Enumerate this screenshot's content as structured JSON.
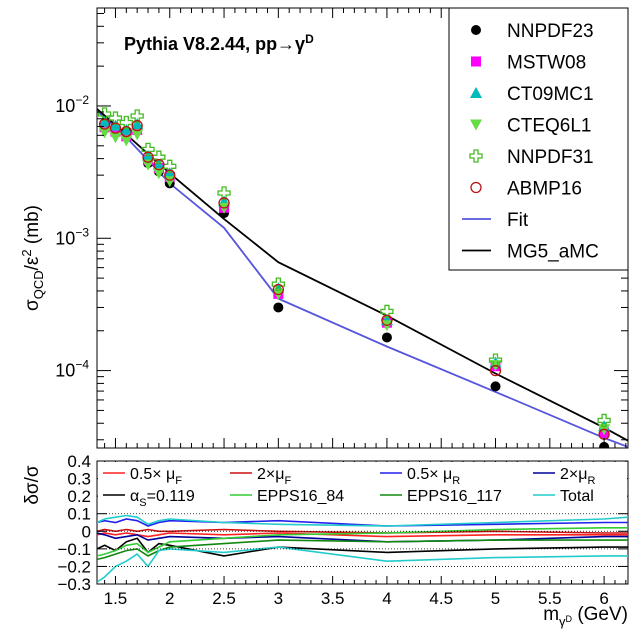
{
  "chart_data": [
    {
      "type": "scatter",
      "panel": "top",
      "title": "Pythia V8.2.44, pp→γD",
      "title_main": "Pythia V8.2.44, pp→γ",
      "title_sup": "D",
      "ylabel_parts": {
        "sigma": "σ",
        "sub": "QCD",
        "mid": "/ε",
        "sup": "2",
        "unit": " (mb)"
      },
      "yscale": "log",
      "xlim": [
        1.33,
        6.22
      ],
      "ylim": [
        2.6e-05,
        0.055
      ],
      "yticks": [
        {
          "v": 0.0001,
          "base": "10",
          "exp": "−4"
        },
        {
          "v": 0.001,
          "base": "10",
          "exp": "−3"
        },
        {
          "v": 0.01,
          "base": "10",
          "exp": "−2"
        }
      ],
      "legend_position": "top-right",
      "series": [
        {
          "name": "NNPDF23",
          "marker": "filled-circle",
          "color": "#000000",
          "x": [
            1.4,
            1.5,
            1.6,
            1.7,
            1.8,
            1.9,
            2.0,
            2.5,
            3.0,
            4.0,
            5.0,
            6.0
          ],
          "y": [
            0.0071,
            0.0066,
            0.0064,
            0.0068,
            0.0037,
            0.0032,
            0.0026,
            0.00155,
            0.0003,
            0.000178,
            7.6e-05,
            2.65e-05
          ]
        },
        {
          "name": "MSTW08",
          "marker": "filled-square",
          "color": "#ff00ff",
          "x": [
            1.4,
            1.5,
            1.6,
            1.7,
            1.8,
            1.9,
            2.0,
            2.5,
            3.0,
            4.0,
            5.0,
            6.0
          ],
          "y": [
            0.0069,
            0.0064,
            0.0059,
            0.0066,
            0.0039,
            0.0034,
            0.0029,
            0.0017,
            0.00038,
            0.00023,
            0.000108,
            3.4e-05
          ]
        },
        {
          "name": "CT09MC1",
          "marker": "triangle-up",
          "color": "#00bbbb",
          "x": [
            1.4,
            1.5,
            1.6,
            1.7,
            1.8,
            1.9,
            2.0,
            2.5,
            3.0,
            4.0,
            5.0,
            6.0
          ],
          "y": [
            0.0076,
            0.0071,
            0.0066,
            0.0073,
            0.0042,
            0.0036,
            0.0031,
            0.0019,
            0.00042,
            0.00024,
            0.000115,
            3.8e-05
          ]
        },
        {
          "name": "CTEQ6L1",
          "marker": "triangle-down",
          "color": "#66dd44",
          "x": [
            1.4,
            1.5,
            1.6,
            1.7,
            1.8,
            1.9,
            2.0,
            2.5,
            3.0,
            4.0,
            5.0,
            6.0
          ],
          "y": [
            0.0063,
            0.0058,
            0.0055,
            0.0061,
            0.0036,
            0.0031,
            0.0027,
            0.0017,
            0.00038,
            0.00022,
            0.00011,
            3.6e-05
          ]
        },
        {
          "name": "NNPDF31",
          "marker": "open-cross",
          "color": "#44bb22",
          "x": [
            1.4,
            1.5,
            1.6,
            1.7,
            1.8,
            1.9,
            2.0,
            2.5,
            3.0,
            4.0,
            5.0,
            6.0
          ],
          "y": [
            0.0087,
            0.0081,
            0.0075,
            0.0084,
            0.0047,
            0.0041,
            0.0035,
            0.0022,
            0.00045,
            0.00028,
            0.00012,
            4.2e-05
          ]
        },
        {
          "name": "ABMP16",
          "marker": "open-circle",
          "color": "#bb1111",
          "x": [
            1.4,
            1.5,
            1.6,
            1.7,
            1.8,
            1.9,
            2.0,
            2.5,
            3.0,
            4.0,
            5.0,
            6.0
          ],
          "y": [
            0.0073,
            0.0068,
            0.0064,
            0.0071,
            0.0041,
            0.0036,
            0.003,
            0.00185,
            0.00041,
            0.00024,
            0.0001,
            3.3e-05
          ]
        },
        {
          "name": "Fit",
          "line": true,
          "color": "#5555dd",
          "x": [
            1.33,
            1.6,
            2.0,
            2.5,
            3.0,
            4.0,
            5.0,
            6.0,
            6.22
          ],
          "y": [
            0.0092,
            0.0058,
            0.0026,
            0.0012,
            0.00035,
            0.000152,
            6.9e-05,
            3.1e-05,
            2.65e-05
          ]
        },
        {
          "name": "MG5_aMC",
          "line": true,
          "color": "#000000",
          "x": [
            1.33,
            1.6,
            2.0,
            2.5,
            3.0,
            4.0,
            5.0,
            6.0,
            6.22
          ],
          "y": [
            0.0095,
            0.0061,
            0.0031,
            0.0014,
            0.00066,
            0.00026,
            9.5e-05,
            3.7e-05,
            2.95e-05
          ]
        }
      ]
    },
    {
      "type": "line",
      "panel": "bottom",
      "ylabel": "δσ/σ",
      "xlabel_parts": {
        "main": "m",
        "sub": "γ",
        "subsup": "D",
        "unit": " (GeV)"
      },
      "xlim": [
        1.33,
        6.22
      ],
      "ylim": [
        -0.3,
        0.4
      ],
      "xticks": [
        "1.5",
        "2",
        "2.5",
        "3",
        "3.5",
        "4",
        "4.5",
        "5",
        "5.5",
        "6"
      ],
      "xtick_values": [
        1.5,
        2,
        2.5,
        3,
        3.5,
        4,
        4.5,
        5,
        5.5,
        6
      ],
      "yticks": [
        "−0.3",
        "−0.2",
        "−0.1",
        "0",
        "0.1",
        "0.2",
        "0.3",
        "0.4"
      ],
      "ytick_values": [
        -0.3,
        -0.2,
        -0.1,
        0,
        0.1,
        0.2,
        0.3,
        0.4
      ],
      "dotted_lines": [
        -0.2,
        -0.1,
        0,
        0.1
      ],
      "x": [
        1.33,
        1.4,
        1.5,
        1.6,
        1.7,
        1.8,
        1.9,
        2.0,
        2.5,
        3.0,
        4.0,
        5.0,
        6.0,
        6.22
      ],
      "legend_position": "top",
      "series": [
        {
          "label_main": "0.5× μ",
          "label_sub": "F",
          "color": "#ff2222",
          "values": [
            -0.02,
            -0.01,
            -0.02,
            -0.01,
            -0.02,
            -0.03,
            -0.02,
            -0.01,
            -0.02,
            -0.01,
            -0.03,
            -0.02,
            -0.02,
            -0.02
          ]
        },
        {
          "label_main": "2×μ",
          "label_sub": "F",
          "color": "#cc1111",
          "values": [
            0.0,
            0.01,
            0.0,
            0.01,
            0.0,
            0.01,
            0.0,
            0.0,
            0.01,
            0.0,
            -0.01,
            0.0,
            -0.01,
            -0.01
          ]
        },
        {
          "label_main": "0.5× μ",
          "label_sub": "R",
          "color": "#2222ee",
          "values": [
            0.05,
            0.06,
            0.05,
            0.07,
            0.06,
            0.03,
            0.05,
            0.06,
            0.05,
            0.06,
            0.03,
            0.04,
            0.05,
            0.05
          ]
        },
        {
          "label_main": "2×μ",
          "label_sub": "R",
          "color": "#000099",
          "values": [
            -0.01,
            -0.02,
            -0.04,
            -0.03,
            -0.02,
            -0.05,
            -0.04,
            -0.03,
            -0.04,
            -0.03,
            -0.06,
            -0.05,
            -0.03,
            -0.03
          ]
        },
        {
          "label_main": "α",
          "label_sub": "S",
          "label_tail": "=0.119",
          "color": "#000000",
          "values": [
            -0.1,
            -0.08,
            -0.11,
            -0.06,
            -0.04,
            -0.12,
            -0.07,
            -0.08,
            -0.14,
            -0.09,
            -0.12,
            -0.1,
            -0.09,
            -0.09
          ]
        },
        {
          "label_main": "EPPS16_84",
          "color": "#33cc33",
          "values": [
            -0.14,
            -0.13,
            -0.11,
            -0.08,
            -0.07,
            -0.12,
            -0.09,
            -0.06,
            -0.04,
            -0.02,
            -0.01,
            0.01,
            0.02,
            0.02
          ]
        },
        {
          "label_main": "EPPS16_117",
          "color": "#118811",
          "values": [
            -0.16,
            -0.15,
            -0.13,
            -0.11,
            -0.1,
            -0.14,
            -0.11,
            -0.09,
            -0.07,
            -0.05,
            -0.06,
            -0.05,
            -0.05,
            -0.05
          ]
        },
        {
          "label_main": "Total",
          "color": "#22cccc",
          "values": [
            -0.29,
            -0.26,
            -0.2,
            -0.17,
            -0.13,
            -0.2,
            -0.11,
            -0.1,
            -0.12,
            -0.09,
            -0.17,
            -0.15,
            -0.14,
            -0.14
          ],
          "upper": [
            0.05,
            0.07,
            0.08,
            0.09,
            0.08,
            0.04,
            0.06,
            0.07,
            0.05,
            0.04,
            0.03,
            0.05,
            0.07,
            0.08
          ]
        }
      ]
    }
  ]
}
